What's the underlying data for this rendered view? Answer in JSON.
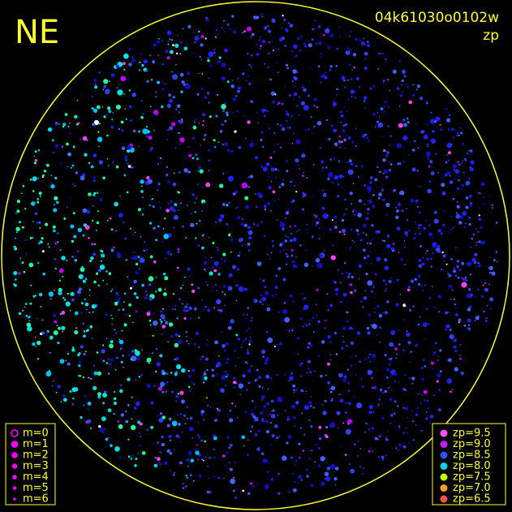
{
  "header": {
    "direction": "NE",
    "frame_id": "04k61030o0102w",
    "mode": "zp"
  },
  "magnitude_legend": [
    "m=0",
    "m=1",
    "m=2",
    "m=3",
    "m=4",
    "m=5",
    "m=6"
  ],
  "zp_legend": [
    "zp=9.5",
    "zp=9.0",
    "zp=8.5",
    "zp=8.0",
    "zp=7.5",
    "zp=7.0",
    "zp=6.5"
  ]
}
